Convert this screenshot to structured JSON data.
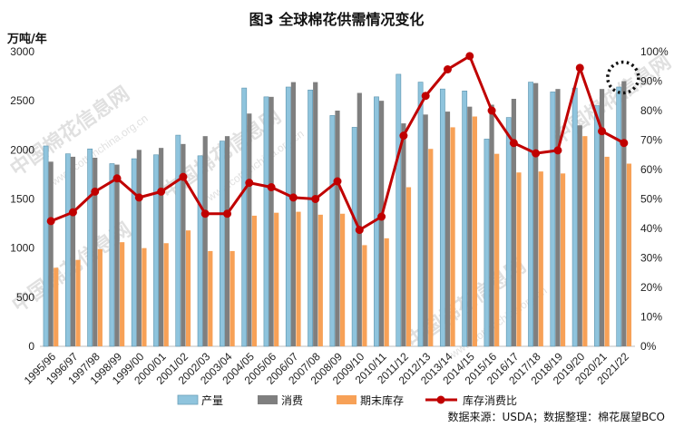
{
  "chart_data": {
    "type": "bar",
    "title": "图3 全球棉花供需情况变化",
    "ylabel": "万吨/年",
    "ylim": [
      0,
      3000
    ],
    "yticks": [
      0,
      500,
      1000,
      1500,
      2000,
      2500,
      3000
    ],
    "y2lim": [
      0,
      100
    ],
    "y2ticks": [
      "0%",
      "10%",
      "20%",
      "30%",
      "40%",
      "50%",
      "60%",
      "70%",
      "80%",
      "90%",
      "100%"
    ],
    "categories": [
      "1995/96",
      "1996/97",
      "1997/98",
      "1998/99",
      "1999/00",
      "2000/01",
      "2001/02",
      "2002/03",
      "2003/04",
      "2004/05",
      "2005/06",
      "2006/07",
      "2007/08",
      "2008/09",
      "2009/10",
      "2010/11",
      "2011/12",
      "2012/13",
      "2013/14",
      "2014/15",
      "2015/16",
      "2016/17",
      "2017/18",
      "2018/19",
      "2019/20",
      "2020/21",
      "2021/22"
    ],
    "series": [
      {
        "name": "产量",
        "kind": "bar",
        "axis": "left",
        "color": "#8fc4dd",
        "values": [
          2040,
          1960,
          2010,
          1860,
          1910,
          1950,
          2150,
          1940,
          2090,
          2630,
          2540,
          2640,
          2610,
          2350,
          2230,
          2540,
          2770,
          2690,
          2620,
          2600,
          2110,
          2330,
          2690,
          2590,
          2630,
          2450,
          2640
        ]
      },
      {
        "name": "消费",
        "kind": "bar",
        "axis": "left",
        "color": "#7f7f7f",
        "values": [
          1880,
          1930,
          1920,
          1850,
          2000,
          2020,
          2060,
          2140,
          2140,
          2370,
          2540,
          2690,
          2690,
          2400,
          2580,
          2500,
          2270,
          2360,
          2390,
          2440,
          2460,
          2520,
          2680,
          2620,
          2250,
          2620,
          2700
        ]
      },
      {
        "name": "期末库存",
        "kind": "bar",
        "axis": "left",
        "color": "#f7a157",
        "values": [
          800,
          880,
          990,
          1060,
          1000,
          1050,
          1180,
          970,
          970,
          1330,
          1360,
          1370,
          1340,
          1350,
          1030,
          1100,
          1620,
          2010,
          2230,
          2340,
          1960,
          1770,
          1780,
          1760,
          2140,
          1930,
          1860
        ]
      },
      {
        "name": "库存消费比",
        "kind": "line",
        "axis": "right",
        "color": "#c00000",
        "values": [
          42.5,
          45.5,
          52.5,
          57,
          50.5,
          52.5,
          57.5,
          45,
          45,
          55.5,
          54,
          50.5,
          50,
          56,
          39.5,
          44,
          71.5,
          85,
          94,
          98.5,
          80,
          69,
          65.5,
          66.5,
          94.5,
          73,
          69
        ]
      }
    ],
    "legend": [
      "产量",
      "消费",
      "期末库存",
      "库存消费比"
    ],
    "legend_placement": "bottom",
    "grid": false,
    "annotation": "dotted circle highlighting 2021/22"
  },
  "footer": {
    "source": "数据来源：USDA；数据整理：棉花展望BCO"
  },
  "watermark": {
    "cn": "中国棉花信息网",
    "url": "www.cottonchina.org.cn"
  }
}
